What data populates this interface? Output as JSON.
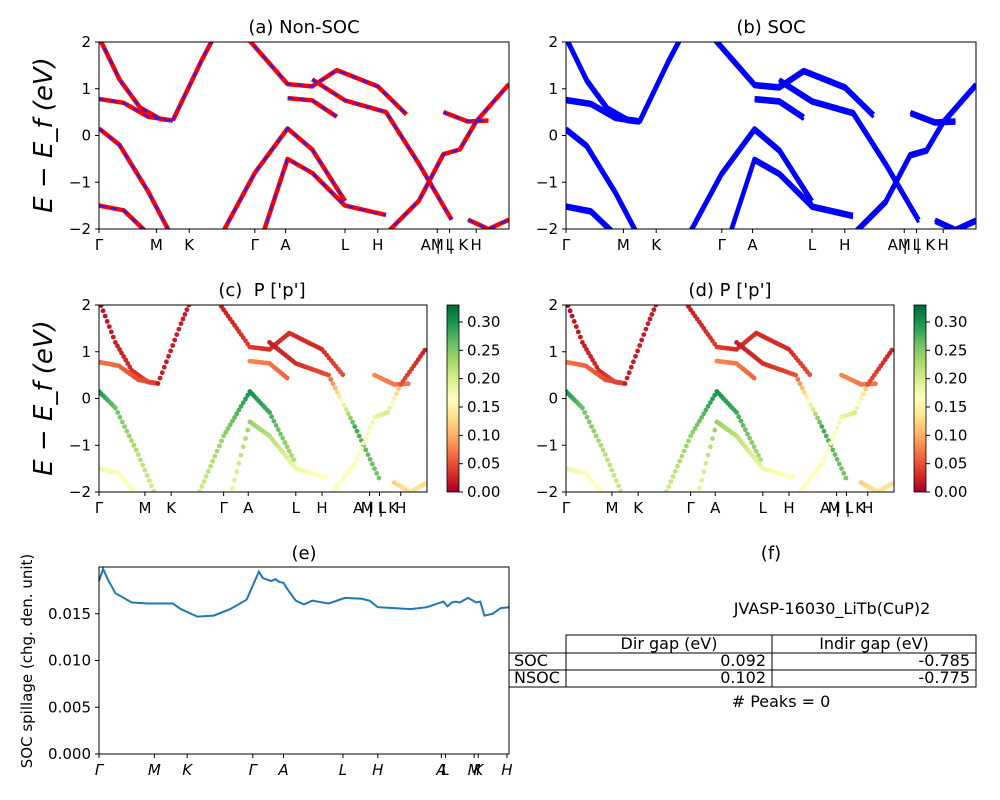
{
  "chart_data": [
    {
      "type": "line",
      "title": "(a) Non-SOC",
      "ylabel": "E − E_f (eV)",
      "ylim": [
        -2,
        2
      ],
      "yticks": [
        -2,
        -1,
        0,
        1,
        2
      ],
      "xticks": [
        "Γ",
        "M",
        "K",
        "Γ",
        "A",
        "L",
        "H",
        "A | L",
        "M | K",
        "H"
      ],
      "series": [
        {
          "color": "#ff0000",
          "style": "solid thick",
          "bands": [
            [
              [
                0,
                2.1
              ],
              [
                0.05,
                1.2
              ],
              [
                0.1,
                0.6
              ],
              [
                0.15,
                0.35
              ],
              [
                0.18,
                0.32
              ]
            ],
            [
              [
                0,
                0.78
              ],
              [
                0.06,
                0.7
              ],
              [
                0.12,
                0.4
              ],
              [
                0.18,
                0.32
              ]
            ],
            [
              [
                0,
                0.15
              ],
              [
                0.05,
                -0.2
              ],
              [
                0.12,
                -1.2
              ],
              [
                0.18,
                -2.2
              ]
            ],
            [
              [
                0,
                -1.5
              ],
              [
                0.06,
                -1.6
              ],
              [
                0.12,
                -2.1
              ]
            ],
            [
              [
                0.18,
                0.32
              ],
              [
                0.25,
                1.6
              ],
              [
                0.28,
                2.1
              ]
            ],
            [
              [
                0.3,
                -2.1
              ],
              [
                0.38,
                -0.8
              ],
              [
                0.46,
                0.15
              ],
              [
                0.52,
                -0.3
              ],
              [
                0.6,
                -1.4
              ]
            ],
            [
              [
                0.4,
                -2.1
              ],
              [
                0.46,
                -0.5
              ],
              [
                0.52,
                -0.8
              ],
              [
                0.6,
                -1.5
              ],
              [
                0.7,
                -1.7
              ]
            ],
            [
              [
                0.36,
                2.1
              ],
              [
                0.42,
                1.5
              ],
              [
                0.46,
                1.1
              ],
              [
                0.52,
                1.05
              ],
              [
                0.58,
                1.4
              ],
              [
                0.68,
                1.05
              ],
              [
                0.75,
                0.45
              ]
            ],
            [
              [
                0.46,
                0.8
              ],
              [
                0.52,
                0.75
              ],
              [
                0.58,
                0.4
              ]
            ],
            [
              [
                0.52,
                1.2
              ],
              [
                0.6,
                0.75
              ],
              [
                0.7,
                0.5
              ],
              [
                0.78,
                -0.6
              ],
              [
                0.86,
                -1.8
              ]
            ],
            [
              [
                0.7,
                -2.1
              ],
              [
                0.78,
                -1.4
              ],
              [
                0.84,
                -0.4
              ],
              [
                0.88,
                -0.3
              ],
              [
                0.92,
                0.3
              ]
            ],
            [
              [
                0.84,
                0.5
              ],
              [
                0.9,
                0.3
              ],
              [
                0.95,
                0.32
              ]
            ],
            [
              [
                0.9,
                -1.8
              ],
              [
                0.95,
                -2.0
              ],
              [
                1.0,
                -1.8
              ]
            ],
            [
              [
                0.92,
                0.3
              ],
              [
                1.0,
                1.1
              ]
            ]
          ]
        },
        {
          "color": "#1f1fff",
          "style": "dashed",
          "bands": "same as red"
        }
      ]
    },
    {
      "type": "line",
      "title": "(b) SOC",
      "ylim": [
        -2,
        2
      ],
      "yticks": [
        -2,
        -1,
        0,
        1,
        2
      ],
      "xticks": [
        "Γ",
        "M",
        "K",
        "Γ",
        "A",
        "L",
        "H",
        "A | L",
        "M | K",
        "H"
      ],
      "series": [
        {
          "color": "#0000ff",
          "style": "solid thick",
          "bands": "same as (a)"
        }
      ]
    },
    {
      "type": "scatter",
      "title": "(c)  P ['p']",
      "ylabel": "E − E_f (eV)",
      "ylim": [
        -2,
        2
      ],
      "yticks": [
        -2,
        -1,
        0,
        1,
        2
      ],
      "xticks": [
        "Γ",
        "M",
        "K",
        "Γ",
        "A",
        "L",
        "H",
        "A | L",
        "M | K",
        "H"
      ],
      "colorbar": {
        "min": 0.0,
        "max": 0.33,
        "ticks": [
          "0.00",
          "0.05",
          "0.10",
          "0.15",
          "0.20",
          "0.25",
          "0.30"
        ],
        "colormap": "RdYlGn"
      },
      "weights": [
        [
          0.01,
          0.02,
          0.03,
          0.04,
          0.05
        ],
        [
          0.07,
          0.06,
          0.05,
          0.04
        ],
        [
          0.3,
          0.26,
          0.22,
          0.2
        ],
        [
          0.18,
          0.17,
          0.16
        ],
        [
          0.02,
          0.02,
          0.02
        ],
        [
          0.2,
          0.24,
          0.3,
          0.28,
          0.22
        ],
        [
          0.18,
          0.24,
          0.22,
          0.18,
          0.16
        ],
        [
          0.02,
          0.03,
          0.04,
          0.03,
          0.03,
          0.03,
          0.05
        ],
        [
          0.08,
          0.07,
          0.06
        ],
        [
          0.02,
          0.03,
          0.05,
          0.28,
          0.25
        ],
        [
          0.17,
          0.16,
          0.18,
          0.2,
          0.1
        ],
        [
          0.08,
          0.07,
          0.07
        ],
        [
          0.12,
          0.14,
          0.13
        ],
        [
          0.05,
          0.02
        ]
      ]
    },
    {
      "type": "scatter",
      "title": "(d) P ['p']",
      "ylim": [
        -2,
        2
      ],
      "yticks": [
        -2,
        -1,
        0,
        1,
        2
      ],
      "xticks": [
        "Γ",
        "M",
        "K",
        "Γ",
        "A",
        "L",
        "H",
        "A | L",
        "M | K",
        "H"
      ],
      "colorbar": {
        "min": 0.0,
        "max": 0.33,
        "ticks": [
          "0.00",
          "0.05",
          "0.10",
          "0.15",
          "0.20",
          "0.25",
          "0.30"
        ],
        "colormap": "RdYlGn"
      }
    },
    {
      "type": "line",
      "title": "(e)",
      "ylabel": "SOC spillage (chg. den. unit)",
      "ylim": [
        0,
        0.02
      ],
      "yticks": [
        "0.000",
        "0.005",
        "0.010",
        "0.015"
      ],
      "xticks": [
        "Γ",
        "M",
        "K",
        "Γ",
        "A",
        "L",
        "H",
        "A",
        "L",
        "M",
        "K",
        "H"
      ],
      "x": [
        0.0,
        0.01,
        0.02,
        0.04,
        0.08,
        0.12,
        0.15,
        0.18,
        0.2,
        0.24,
        0.28,
        0.32,
        0.36,
        0.38,
        0.39,
        0.4,
        0.42,
        0.43,
        0.44,
        0.45,
        0.46,
        0.48,
        0.5,
        0.52,
        0.56,
        0.6,
        0.64,
        0.66,
        0.68,
        0.72,
        0.76,
        0.8,
        0.84,
        0.85,
        0.86,
        0.87,
        0.88,
        0.9,
        0.92,
        0.93,
        0.94,
        0.96,
        0.98,
        1.0
      ],
      "values": [
        0.0185,
        0.0198,
        0.0188,
        0.0172,
        0.0162,
        0.0161,
        0.0161,
        0.0161,
        0.0155,
        0.0147,
        0.0148,
        0.0155,
        0.0165,
        0.0185,
        0.0195,
        0.0188,
        0.0185,
        0.0187,
        0.0184,
        0.0183,
        0.0176,
        0.0164,
        0.016,
        0.0164,
        0.0161,
        0.0167,
        0.0166,
        0.0164,
        0.0157,
        0.0156,
        0.0155,
        0.0157,
        0.0163,
        0.0158,
        0.0162,
        0.0163,
        0.0162,
        0.0167,
        0.0162,
        0.0163,
        0.0148,
        0.015,
        0.0156,
        0.0157
      ],
      "color": "#1f77b4"
    },
    {
      "type": "table",
      "title": "(f)",
      "subtitle": "JVASP-16030_LiTb(CuP)2",
      "columns": [
        "Dir gap (eV)",
        "Indir gap (eV)"
      ],
      "rows": [
        {
          "label": "SOC",
          "values": [
            "0.092",
            "-0.785"
          ]
        },
        {
          "label": "NSOC",
          "values": [
            "0.102",
            "-0.775"
          ]
        }
      ],
      "footnote": "# Peaks = 0"
    }
  ]
}
